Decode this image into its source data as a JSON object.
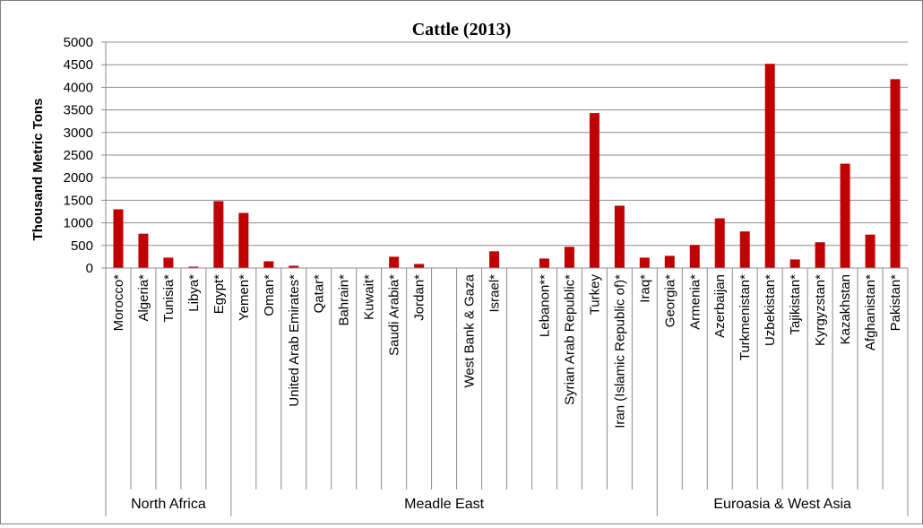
{
  "chart_data": {
    "type": "bar",
    "title": "Cattle (2013)",
    "xlabel": "",
    "ylabel": "Thousand Metric Tons",
    "ylim": [
      0,
      5000
    ],
    "yticks": [
      0,
      500,
      1000,
      1500,
      2000,
      2500,
      3000,
      3500,
      4000,
      4500,
      5000
    ],
    "ytick_labels": [
      "0",
      "500",
      "1000",
      "1500",
      "2000",
      "2500",
      "3000",
      "3500",
      "4000",
      "4500",
      "5000"
    ],
    "grid": true,
    "legend": "none",
    "bar_color": "#c00000",
    "categories": [
      "Morocco*",
      "Algeria*",
      "Tunisia*",
      "Libya*",
      "Egypt*",
      "Yemen*",
      "Oman*",
      "United Arab Emirates*",
      "Qatar*",
      "Bahrain*",
      "Kuwait*",
      "Saudi Arabia*",
      "Jordan*",
      "",
      "West Bank & Gaza",
      "Israel*",
      "",
      "Lebanon**",
      "Syrian Arab Republic*",
      "Turkey",
      "Iran (Islamic Republic of)*",
      "Iraq*",
      "Georgia*",
      "Armenia*",
      "Azerbaijan",
      "Turkmenistan*",
      "Uzbekistan*",
      "Tajikistan*",
      "Kyrgyzstan*",
      "Kazakhstan",
      "Afghanistan*",
      "Pakistan*"
    ],
    "values": [
      1300,
      760,
      230,
      30,
      1480,
      1220,
      150,
      50,
      0,
      0,
      0,
      250,
      90,
      0,
      0,
      370,
      0,
      210,
      470,
      3430,
      1380,
      230,
      270,
      510,
      1100,
      810,
      4520,
      190,
      570,
      2310,
      740,
      4180
    ],
    "groups": [
      {
        "label": "North Africa",
        "start": 0,
        "count": 5
      },
      {
        "label": "Meadle East",
        "start": 5,
        "count": 17
      },
      {
        "label": "Euroasia & West Asia",
        "start": 22,
        "count": 10
      }
    ]
  }
}
